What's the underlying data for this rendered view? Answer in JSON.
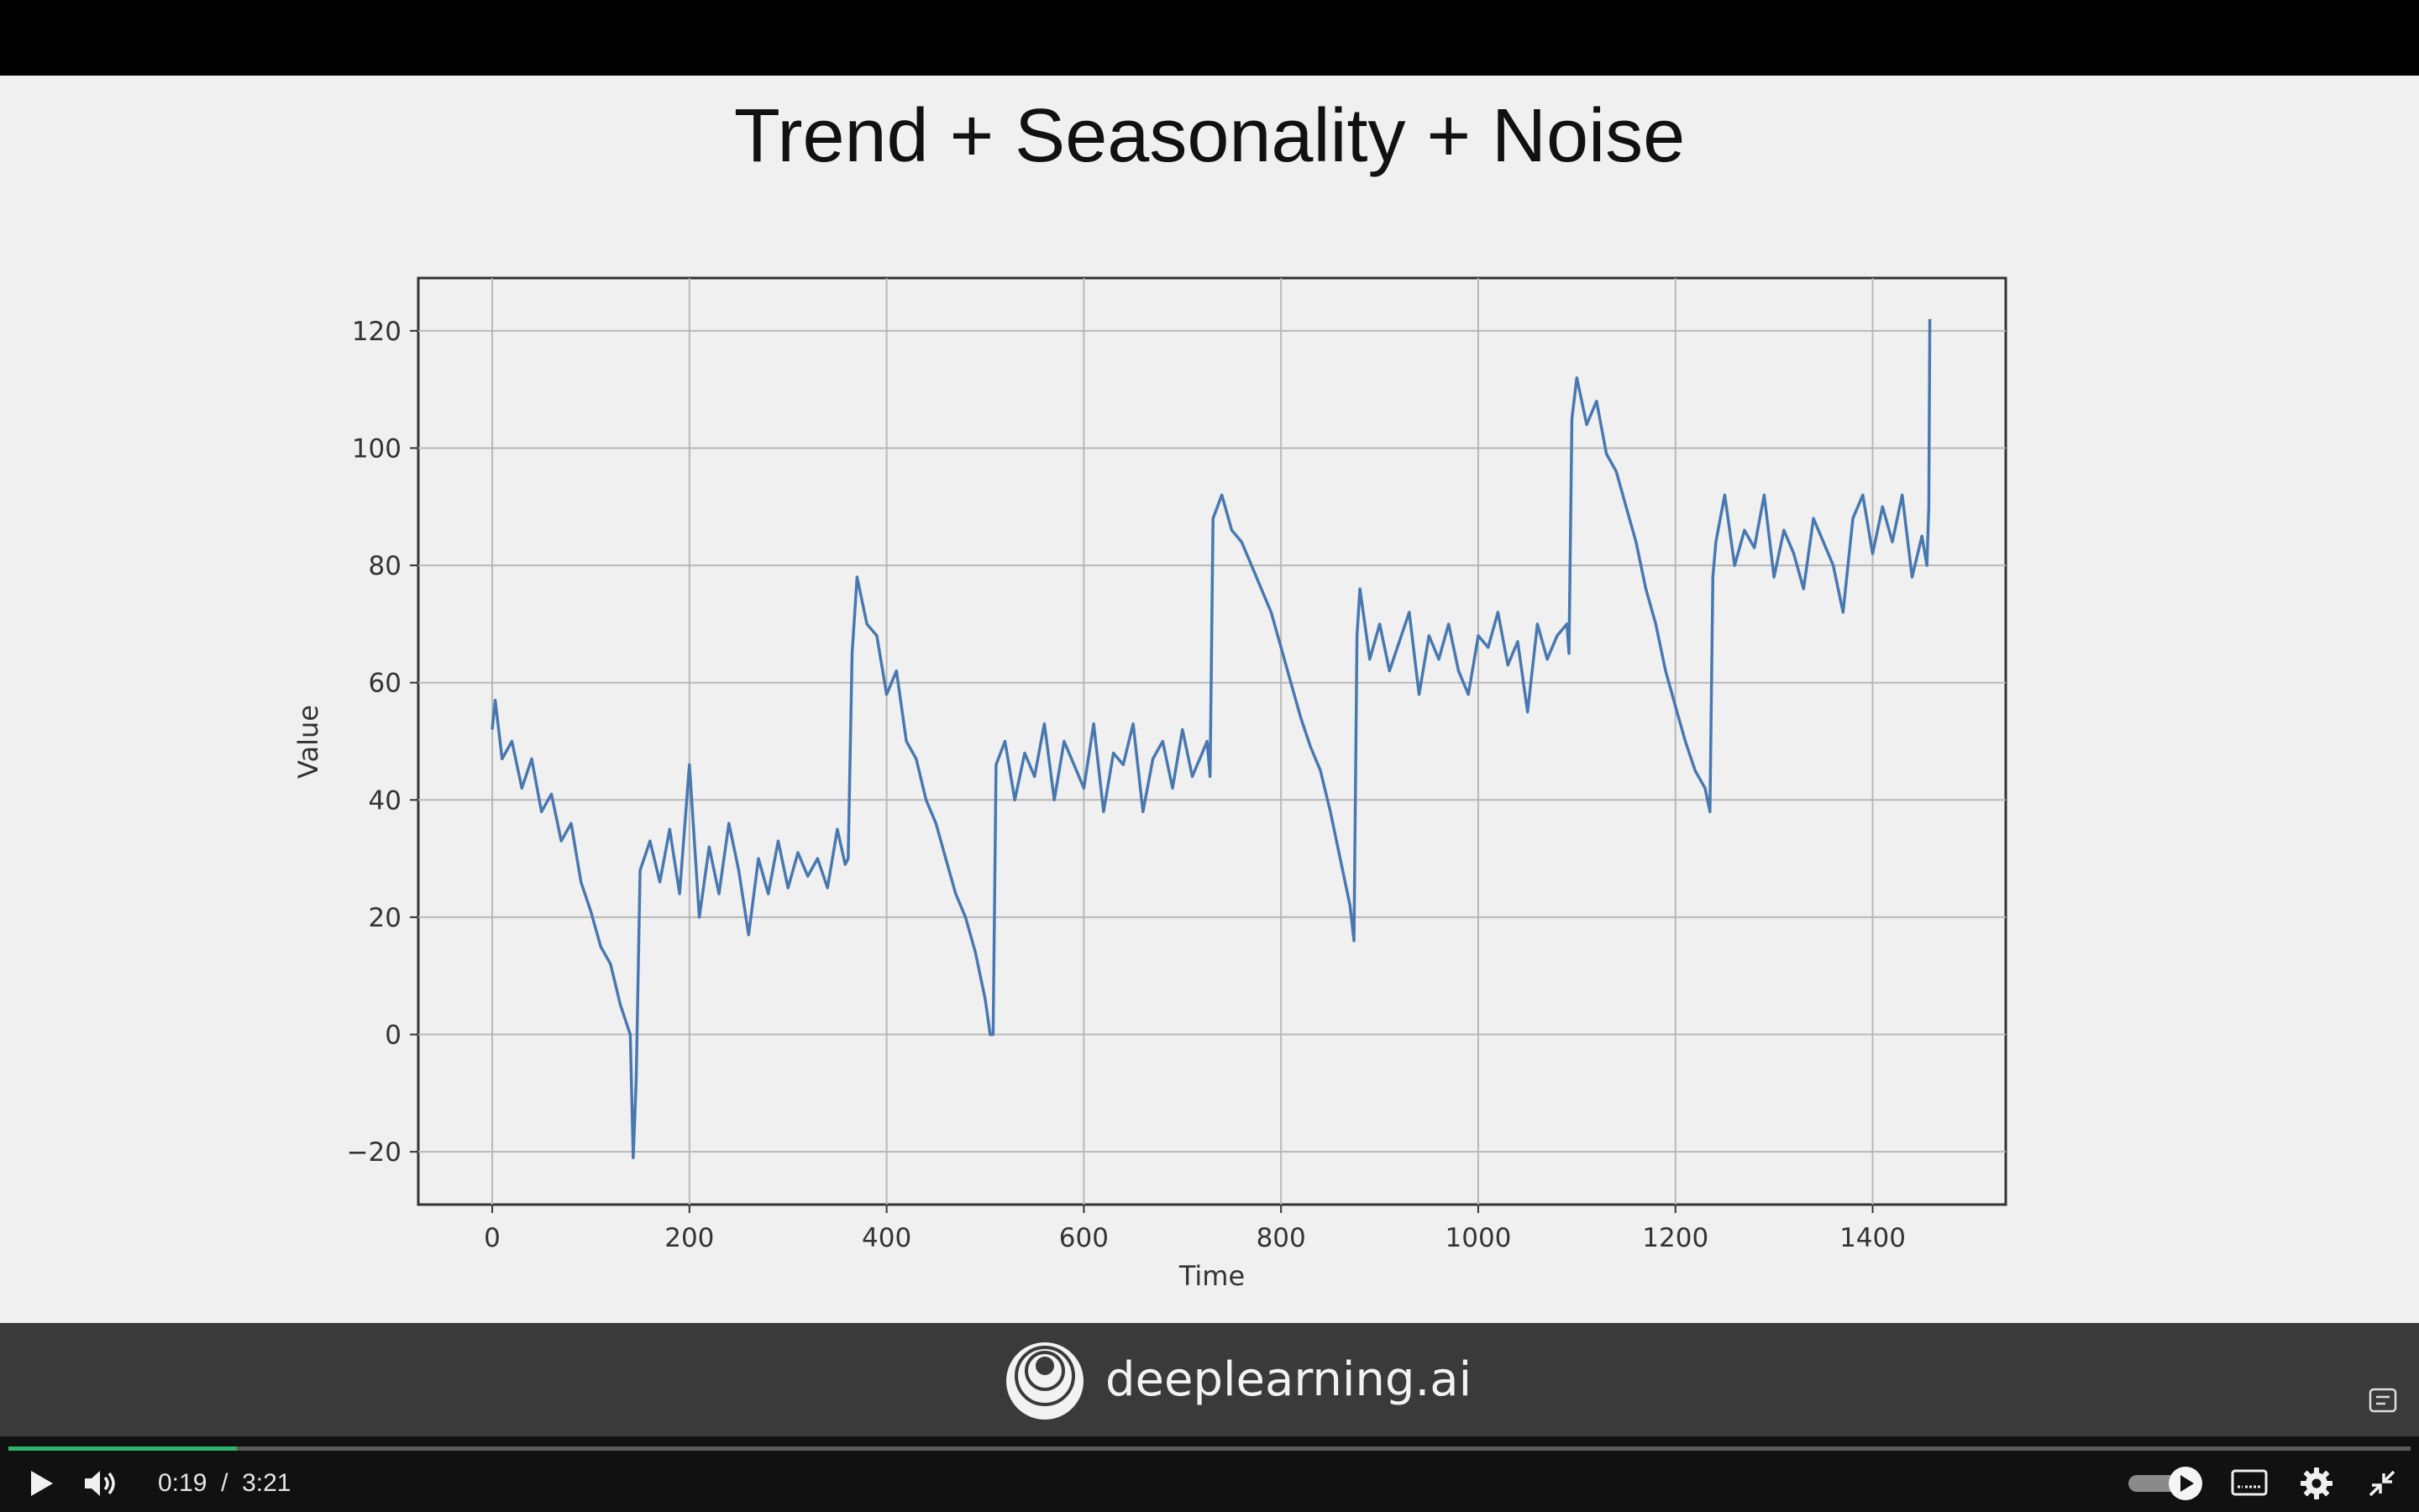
{
  "slide": {
    "title": "Trend + Seasonality + Noise"
  },
  "chart_data": {
    "type": "line",
    "title": "",
    "xlabel": "Time",
    "ylabel": "Value",
    "xlim": [
      -75,
      1535
    ],
    "ylim": [
      -29,
      129
    ],
    "x_ticks": [
      0,
      200,
      400,
      600,
      800,
      1000,
      1200,
      1400
    ],
    "y_ticks": [
      -20,
      0,
      20,
      40,
      60,
      80,
      100,
      120
    ],
    "grid": true,
    "series_color": "#4878b0",
    "series": [
      {
        "x": [
          0,
          3,
          10,
          20,
          30,
          40,
          50,
          60,
          70,
          80,
          90,
          100,
          110,
          120,
          130,
          140,
          143,
          146,
          150,
          160,
          170,
          180,
          190,
          200,
          210,
          220,
          230,
          240,
          250,
          260,
          270,
          280,
          290,
          300,
          310,
          320,
          330,
          340,
          350,
          358,
          361,
          365,
          370,
          380,
          390,
          400,
          410,
          420,
          430,
          440,
          450,
          460,
          470,
          480,
          490,
          500,
          505,
          508,
          511,
          520,
          530,
          540,
          550,
          560,
          570,
          580,
          590,
          600,
          610,
          620,
          630,
          640,
          650,
          660,
          670,
          680,
          690,
          700,
          710,
          720,
          725,
          728,
          731,
          740,
          750,
          760,
          770,
          780,
          790,
          800,
          810,
          820,
          830,
          840,
          850,
          860,
          870,
          874,
          877,
          880,
          890,
          900,
          910,
          920,
          930,
          940,
          950,
          960,
          970,
          980,
          990,
          1000,
          1010,
          1020,
          1030,
          1040,
          1050,
          1060,
          1070,
          1080,
          1090,
          1092,
          1095,
          1100,
          1110,
          1120,
          1130,
          1140,
          1150,
          1160,
          1170,
          1180,
          1190,
          1200,
          1210,
          1220,
          1230,
          1235,
          1238,
          1241,
          1250,
          1260,
          1270,
          1280,
          1290,
          1300,
          1310,
          1320,
          1330,
          1340,
          1350,
          1360,
          1370,
          1380,
          1390,
          1400,
          1410,
          1420,
          1430,
          1440,
          1450,
          1455,
          1457,
          1458
        ],
        "y": [
          52,
          57,
          47,
          50,
          42,
          47,
          38,
          41,
          33,
          36,
          26,
          21,
          15,
          12,
          5,
          0,
          -21,
          -8,
          28,
          33,
          26,
          35,
          24,
          46,
          20,
          32,
          24,
          36,
          28,
          17,
          30,
          24,
          33,
          25,
          31,
          27,
          30,
          25,
          35,
          29,
          30,
          65,
          78,
          70,
          68,
          58,
          62,
          50,
          47,
          40,
          36,
          30,
          24,
          20,
          14,
          6,
          0,
          0,
          46,
          50,
          40,
          48,
          44,
          53,
          40,
          50,
          46,
          42,
          53,
          38,
          48,
          46,
          53,
          38,
          47,
          50,
          42,
          52,
          44,
          48,
          50,
          44,
          88,
          92,
          86,
          84,
          80,
          76,
          72,
          66,
          60,
          54,
          49,
          45,
          38,
          30,
          22,
          16,
          68,
          76,
          64,
          70,
          62,
          67,
          72,
          58,
          68,
          64,
          70,
          62,
          58,
          68,
          66,
          72,
          63,
          67,
          55,
          70,
          64,
          68,
          70,
          65,
          105,
          112,
          104,
          108,
          99,
          96,
          90,
          84,
          76,
          70,
          62,
          56,
          50,
          45,
          42,
          38,
          78,
          84,
          92,
          80,
          86,
          83,
          92,
          78,
          86,
          82,
          76,
          88,
          84,
          80,
          72,
          88,
          92,
          82,
          90,
          84,
          92,
          78,
          85,
          80,
          90,
          122
        ]
      }
    ]
  },
  "logo": {
    "icon": "deeplearning-ai-logo-icon",
    "text": "deeplearning.ai"
  },
  "player": {
    "current_time": "0:19",
    "duration": "3:21",
    "time_separator": "/",
    "progress_fraction": 0.095,
    "accent_color": "#2fb36b",
    "icons": {
      "play": "play-icon",
      "volume": "volume-icon",
      "autoplay": "autoplay-toggle-icon",
      "captions": "captions-icon",
      "settings": "gear-icon",
      "exit_fullscreen": "exit-fullscreen-icon",
      "transcript": "transcript-icon"
    }
  }
}
